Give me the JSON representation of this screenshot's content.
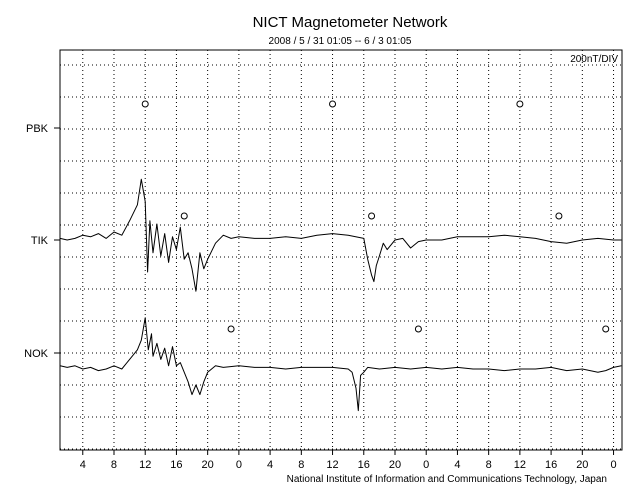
{
  "chart_data": {
    "type": "line",
    "title": "NICT Magnetometer Network",
    "subtitle": "2008 / 5 / 31   01:05 --  6 / 3   01:05",
    "scale_label": "200nT/DIV",
    "footer": "National Institute of Information and Communications Technology, Japan",
    "x_tick_labels": [
      "4",
      "8",
      "12",
      "16",
      "20",
      "0",
      "4",
      "8",
      "12",
      "16",
      "20",
      "0",
      "4",
      "8",
      "12",
      "16",
      "20",
      "0"
    ],
    "x_range_hours": [
      1.083,
      73.083
    ],
    "grid": "dotted",
    "series": [
      {
        "name": "PBK",
        "markers_hours": [
          12,
          36,
          60
        ],
        "points": []
      },
      {
        "name": "TIK",
        "markers_hours": [
          17,
          41,
          65
        ],
        "points": [
          [
            1.1,
            0.05
          ],
          [
            2,
            0
          ],
          [
            3,
            0.05
          ],
          [
            4,
            0.15
          ],
          [
            5,
            0.1
          ],
          [
            6,
            0.2
          ],
          [
            7,
            0.05
          ],
          [
            8,
            0.25
          ],
          [
            9,
            0.15
          ],
          [
            10,
            0.6
          ],
          [
            11,
            1.1
          ],
          [
            11.5,
            1.9
          ],
          [
            12,
            1.2
          ],
          [
            12.3,
            -1.0
          ],
          [
            12.6,
            0.6
          ],
          [
            13,
            -0.4
          ],
          [
            13.5,
            0.5
          ],
          [
            14,
            -0.5
          ],
          [
            14.5,
            0.2
          ],
          [
            15,
            -0.7
          ],
          [
            15.5,
            0.1
          ],
          [
            16,
            -0.3
          ],
          [
            16.5,
            0.4
          ],
          [
            17,
            -0.6
          ],
          [
            17.5,
            -0.4
          ],
          [
            18,
            -0.9
          ],
          [
            18.5,
            -1.6
          ],
          [
            19,
            -0.4
          ],
          [
            19.5,
            -0.9
          ],
          [
            20,
            -0.6
          ],
          [
            21,
            -0.1
          ],
          [
            22,
            0.15
          ],
          [
            23,
            0.05
          ],
          [
            24,
            0.1
          ],
          [
            26,
            0.05
          ],
          [
            28,
            0.05
          ],
          [
            30,
            0.1
          ],
          [
            32,
            0.05
          ],
          [
            34,
            0.15
          ],
          [
            36,
            0.2
          ],
          [
            38,
            0.15
          ],
          [
            40,
            0.05
          ],
          [
            40.5,
            -0.6
          ],
          [
            41,
            -1.1
          ],
          [
            41.3,
            -1.3
          ],
          [
            41.6,
            -0.8
          ],
          [
            42,
            -0.5
          ],
          [
            42.5,
            -0.1
          ],
          [
            43,
            -0.3
          ],
          [
            44,
            0
          ],
          [
            45,
            0.05
          ],
          [
            46,
            -0.25
          ],
          [
            47,
            -0.05
          ],
          [
            48,
            0
          ],
          [
            50,
            0
          ],
          [
            52,
            0.1
          ],
          [
            54,
            0.1
          ],
          [
            56,
            0.1
          ],
          [
            58,
            0.15
          ],
          [
            60,
            0.1
          ],
          [
            62,
            0.05
          ],
          [
            64,
            -0.05
          ],
          [
            66,
            -0.1
          ],
          [
            68,
            0
          ],
          [
            70,
            0.05
          ],
          [
            72,
            0
          ],
          [
            73,
            0
          ]
        ]
      },
      {
        "name": "NOK",
        "markers_hours": [
          23,
          47,
          71
        ],
        "points": [
          [
            1.1,
            -0.4
          ],
          [
            2,
            -0.45
          ],
          [
            3,
            -0.4
          ],
          [
            4,
            -0.5
          ],
          [
            5,
            -0.45
          ],
          [
            6,
            -0.55
          ],
          [
            7,
            -0.5
          ],
          [
            8,
            -0.4
          ],
          [
            9,
            -0.5
          ],
          [
            10,
            -0.2
          ],
          [
            11,
            0.1
          ],
          [
            11.5,
            0.4
          ],
          [
            12,
            1.1
          ],
          [
            12.4,
            0.1
          ],
          [
            12.8,
            0.6
          ],
          [
            13,
            -0.1
          ],
          [
            13.5,
            0.3
          ],
          [
            14,
            -0.2
          ],
          [
            14.5,
            0.15
          ],
          [
            15,
            -0.4
          ],
          [
            15.5,
            0.2
          ],
          [
            16,
            -0.4
          ],
          [
            16.5,
            -0.3
          ],
          [
            17,
            -0.6
          ],
          [
            17.5,
            -0.9
          ],
          [
            18,
            -1.3
          ],
          [
            18.5,
            -1.0
          ],
          [
            19,
            -1.3
          ],
          [
            19.5,
            -0.9
          ],
          [
            20,
            -0.6
          ],
          [
            21,
            -0.4
          ],
          [
            22,
            -0.45
          ],
          [
            24,
            -0.4
          ],
          [
            26,
            -0.45
          ],
          [
            28,
            -0.45
          ],
          [
            30,
            -0.5
          ],
          [
            32,
            -0.45
          ],
          [
            34,
            -0.45
          ],
          [
            36,
            -0.45
          ],
          [
            38,
            -0.5
          ],
          [
            38.5,
            -0.6
          ],
          [
            39,
            -1.1
          ],
          [
            39.3,
            -1.8
          ],
          [
            39.6,
            -0.7
          ],
          [
            40,
            -0.6
          ],
          [
            40.5,
            -0.45
          ],
          [
            42,
            -0.5
          ],
          [
            44,
            -0.45
          ],
          [
            46,
            -0.5
          ],
          [
            48,
            -0.45
          ],
          [
            50,
            -0.5
          ],
          [
            52,
            -0.45
          ],
          [
            54,
            -0.5
          ],
          [
            56,
            -0.5
          ],
          [
            58,
            -0.55
          ],
          [
            60,
            -0.5
          ],
          [
            62,
            -0.5
          ],
          [
            64,
            -0.45
          ],
          [
            66,
            -0.55
          ],
          [
            68,
            -0.5
          ],
          [
            70,
            -0.6
          ],
          [
            71,
            -0.55
          ],
          [
            72,
            -0.45
          ],
          [
            73,
            -0.4
          ]
        ]
      }
    ]
  }
}
